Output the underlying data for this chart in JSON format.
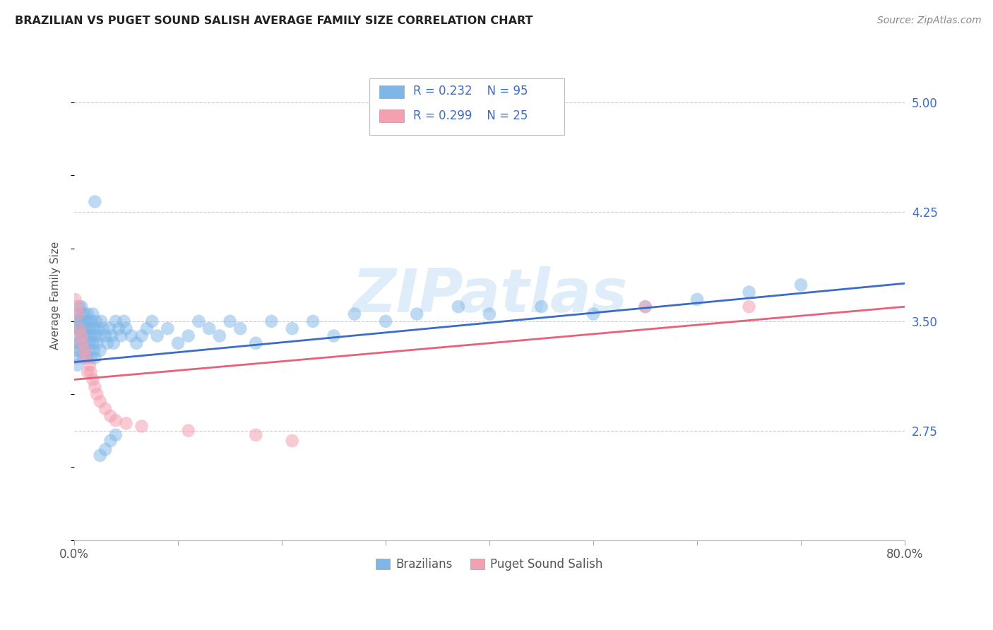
{
  "title": "BRAZILIAN VS PUGET SOUND SALISH AVERAGE FAMILY SIZE CORRELATION CHART",
  "source": "Source: ZipAtlas.com",
  "ylabel": "Average Family Size",
  "yticks_right": [
    2.75,
    3.5,
    4.25,
    5.0
  ],
  "ytick_labels_right": [
    "2.75",
    "3.50",
    "4.25",
    "5.00"
  ],
  "xlim": [
    0.0,
    0.8
  ],
  "ylim": [
    2.0,
    5.35
  ],
  "blue_color": "#7EB6E8",
  "pink_color": "#F4A0B0",
  "blue_line_color": "#3B6CC9",
  "pink_line_color": "#E8607A",
  "watermark": "ZIPatlas",
  "background_color": "#FFFFFF",
  "grid_color": "#CCCCCC",
  "legend_label_blue": "Brazilians",
  "legend_label_pink": "Puget Sound Salish",
  "blue_x": [
    0.001,
    0.002,
    0.002,
    0.003,
    0.003,
    0.003,
    0.004,
    0.004,
    0.004,
    0.005,
    0.005,
    0.005,
    0.006,
    0.006,
    0.007,
    0.007,
    0.007,
    0.008,
    0.008,
    0.009,
    0.009,
    0.01,
    0.01,
    0.01,
    0.011,
    0.011,
    0.012,
    0.012,
    0.013,
    0.013,
    0.014,
    0.014,
    0.015,
    0.015,
    0.016,
    0.016,
    0.017,
    0.018,
    0.018,
    0.019,
    0.019,
    0.02,
    0.02,
    0.021,
    0.022,
    0.023,
    0.024,
    0.025,
    0.026,
    0.028,
    0.03,
    0.032,
    0.034,
    0.036,
    0.038,
    0.04,
    0.043,
    0.045,
    0.048,
    0.05,
    0.055,
    0.06,
    0.065,
    0.07,
    0.075,
    0.08,
    0.09,
    0.1,
    0.11,
    0.12,
    0.13,
    0.14,
    0.15,
    0.16,
    0.175,
    0.19,
    0.21,
    0.23,
    0.25,
    0.27,
    0.3,
    0.33,
    0.37,
    0.4,
    0.45,
    0.5,
    0.55,
    0.6,
    0.65,
    0.7,
    0.02,
    0.025,
    0.03,
    0.035,
    0.04
  ],
  "blue_y": [
    3.3,
    3.25,
    3.45,
    3.2,
    3.35,
    3.5,
    3.4,
    3.55,
    3.45,
    3.3,
    3.5,
    3.6,
    3.35,
    3.45,
    3.55,
    3.4,
    3.6,
    3.5,
    3.35,
    3.45,
    3.25,
    3.4,
    3.55,
    3.3,
    3.5,
    3.35,
    3.45,
    3.25,
    3.4,
    3.55,
    3.3,
    3.5,
    3.35,
    3.45,
    3.4,
    3.25,
    3.5,
    3.35,
    3.55,
    3.3,
    3.45,
    3.4,
    3.25,
    3.5,
    3.35,
    3.45,
    3.4,
    3.3,
    3.5,
    3.45,
    3.4,
    3.35,
    3.45,
    3.4,
    3.35,
    3.5,
    3.45,
    3.4,
    3.5,
    3.45,
    3.4,
    3.35,
    3.4,
    3.45,
    3.5,
    3.4,
    3.45,
    3.35,
    3.4,
    3.5,
    3.45,
    3.4,
    3.5,
    3.45,
    3.35,
    3.5,
    3.45,
    3.5,
    3.4,
    3.55,
    3.5,
    3.55,
    3.6,
    3.55,
    3.6,
    3.55,
    3.6,
    3.65,
    3.7,
    3.75,
    4.32,
    2.58,
    2.62,
    2.68,
    2.72
  ],
  "pink_x": [
    0.001,
    0.003,
    0.004,
    0.005,
    0.007,
    0.008,
    0.01,
    0.011,
    0.013,
    0.015,
    0.016,
    0.018,
    0.02,
    0.022,
    0.025,
    0.03,
    0.035,
    0.04,
    0.05,
    0.065,
    0.11,
    0.175,
    0.21,
    0.55,
    0.65
  ],
  "pink_y": [
    3.65,
    3.6,
    3.55,
    3.45,
    3.4,
    3.35,
    3.3,
    3.25,
    3.15,
    3.2,
    3.15,
    3.1,
    3.05,
    3.0,
    2.95,
    2.9,
    2.85,
    2.82,
    2.8,
    2.78,
    2.75,
    2.72,
    2.68,
    3.6,
    3.6
  ],
  "blue_line_x0": 0.0,
  "blue_line_x1": 0.8,
  "blue_line_y0": 3.22,
  "blue_line_y1": 3.76,
  "pink_line_x0": 0.0,
  "pink_line_x1": 0.8,
  "pink_line_y0": 3.1,
  "pink_line_y1": 3.6
}
